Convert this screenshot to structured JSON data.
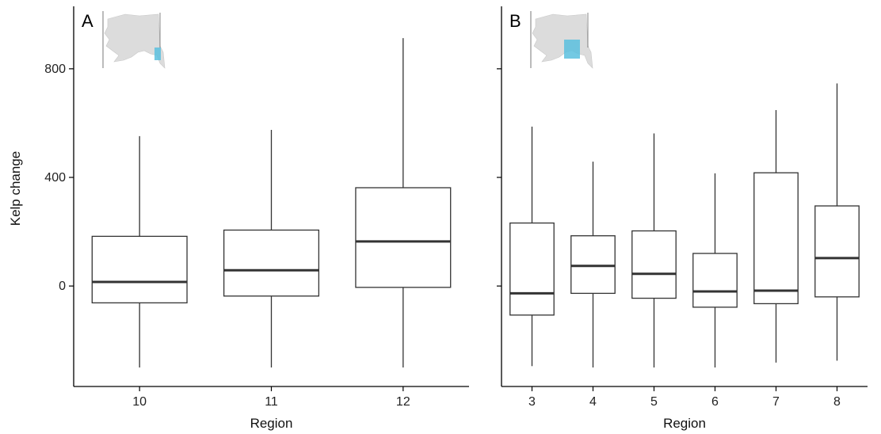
{
  "chart_data": [
    {
      "type": "boxplot",
      "panel_label": "A",
      "xlabel": "Region",
      "ylabel": "Kelp change",
      "ylim": [
        -370,
        1030
      ],
      "yticks": [
        0,
        400,
        800
      ],
      "categories": [
        "10",
        "11",
        "12"
      ],
      "boxes": [
        {
          "category": "10",
          "whisker_low": -300,
          "q1": -62,
          "median": 15,
          "q3": 183,
          "whisker_high": 552
        },
        {
          "category": "11",
          "whisker_low": -300,
          "q1": -37,
          "median": 58,
          "q3": 206,
          "whisker_high": 575
        },
        {
          "category": "12",
          "whisker_low": -300,
          "q1": -5,
          "median": 164,
          "q3": 362,
          "whisker_high": 913
        }
      ],
      "inset_map": {
        "icon": "alaska-map-icon",
        "highlight_color": "#5bc0de",
        "highlight": "southeast"
      }
    },
    {
      "type": "boxplot",
      "panel_label": "B",
      "xlabel": "Region",
      "ylabel": "",
      "ylim": [
        -370,
        1030
      ],
      "yticks": [
        0,
        400,
        800
      ],
      "categories": [
        "3",
        "4",
        "5",
        "6",
        "7",
        "8"
      ],
      "boxes": [
        {
          "category": "3",
          "whisker_low": -295,
          "q1": -107,
          "median": -27,
          "q3": 232,
          "whisker_high": 587
        },
        {
          "category": "4",
          "whisker_low": -300,
          "q1": -27,
          "median": 74,
          "q3": 185,
          "whisker_high": 458
        },
        {
          "category": "5",
          "whisker_low": -300,
          "q1": -45,
          "median": 45,
          "q3": 203,
          "whisker_high": 562
        },
        {
          "category": "6",
          "whisker_low": -300,
          "q1": -78,
          "median": -20,
          "q3": 120,
          "whisker_high": 415
        },
        {
          "category": "7",
          "whisker_low": -282,
          "q1": -65,
          "median": -17,
          "q3": 417,
          "whisker_high": 648
        },
        {
          "category": "8",
          "whisker_low": -275,
          "q1": -40,
          "median": 103,
          "q3": 295,
          "whisker_high": 746
        }
      ],
      "inset_map": {
        "icon": "alaska-map-icon",
        "highlight_color": "#5bc0de",
        "highlight": "south-central"
      }
    }
  ]
}
